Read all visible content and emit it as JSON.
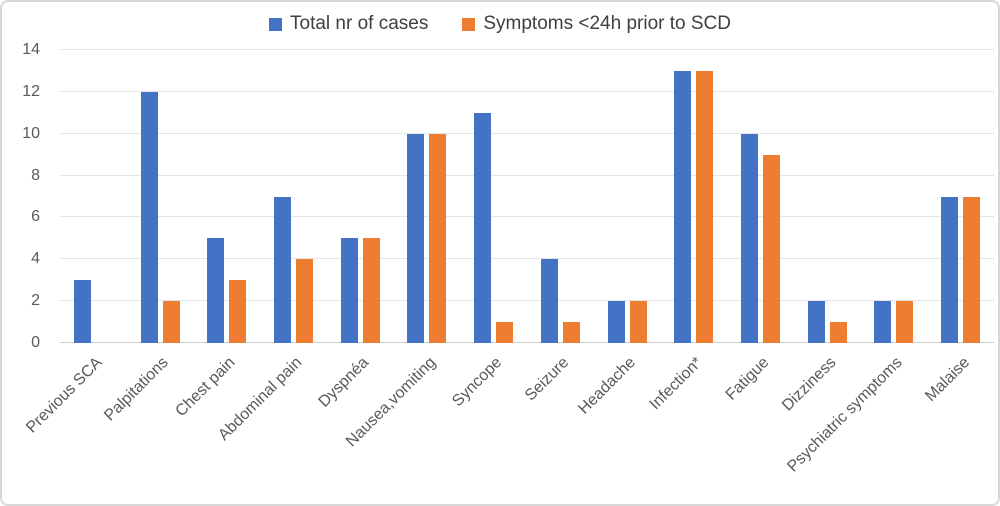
{
  "chart_data": {
    "type": "bar",
    "title": "",
    "xlabel": "",
    "ylabel": "",
    "ylim": [
      0,
      14
    ],
    "yticks": [
      0,
      2,
      4,
      6,
      8,
      10,
      12,
      14
    ],
    "grid": true,
    "legend_position": "top",
    "categories": [
      "Previous SCA",
      "Palpitations",
      "Chest pain",
      "Abdominal pain",
      "Dyspnéa",
      "Nausea,vomiting",
      "Syncope",
      "Seizure",
      "Headache",
      "Infection*",
      "Fatigue",
      "Dizziness",
      "Psychiatric symptoms",
      "Malaise"
    ],
    "series": [
      {
        "name": "Total nr of cases",
        "color": "#4472C4",
        "values": [
          3,
          12,
          5,
          7,
          5,
          10,
          11,
          4,
          2,
          13,
          10,
          2,
          2,
          7
        ]
      },
      {
        "name": "Symptoms <24h prior to SCD",
        "color": "#ED7D31",
        "values": [
          0,
          2,
          3,
          4,
          5,
          10,
          1,
          1,
          2,
          13,
          9,
          1,
          2,
          7
        ]
      }
    ]
  },
  "colors": {
    "grid": "#e4e4e4",
    "axis_line": "#cfcfcf",
    "tick_text": "#595959",
    "legend_text": "#404040",
    "frame_border": "#d8d8d8"
  }
}
